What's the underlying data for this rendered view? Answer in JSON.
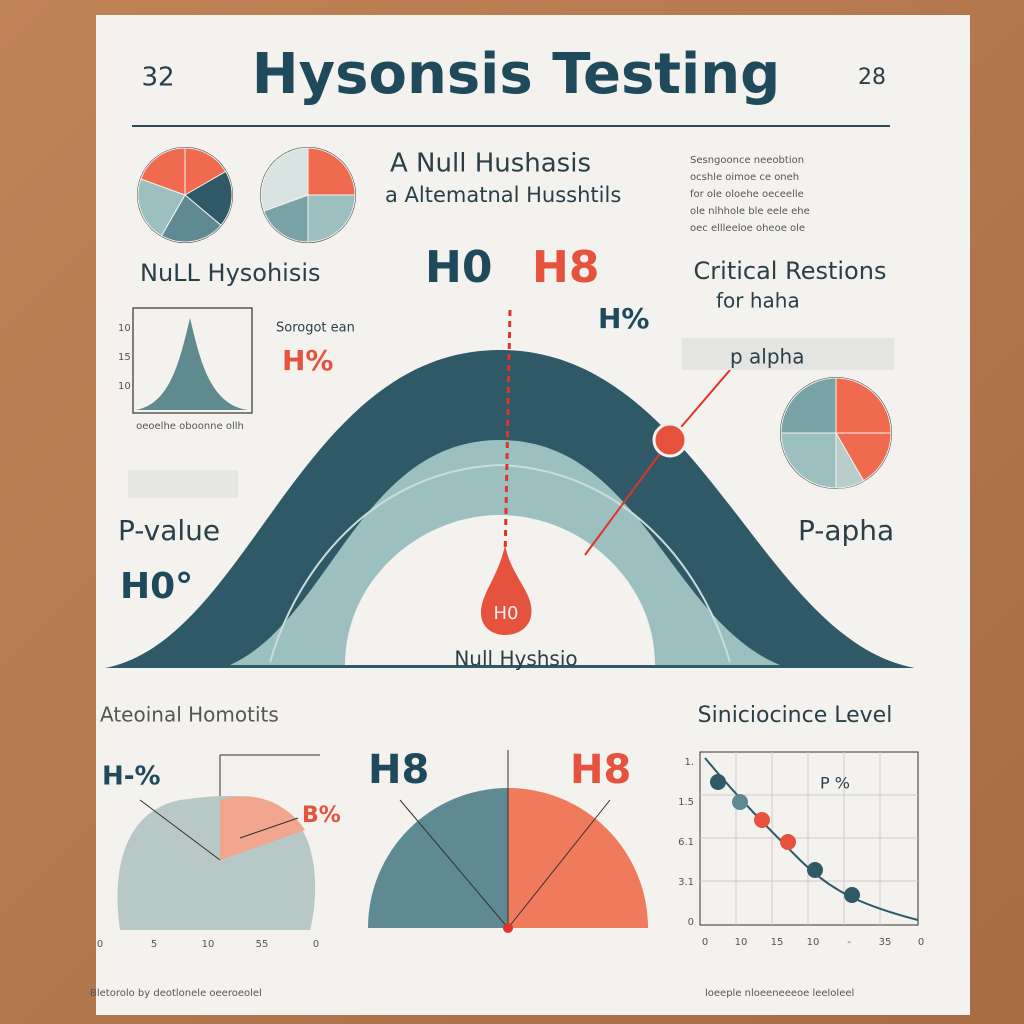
{
  "header": {
    "left_number": "32",
    "title": "Hysonsis Testing",
    "right_number": "28"
  },
  "intro": {
    "line1": "A Null Hushasis",
    "line2": "a Altematnal Husshtils",
    "note": [
      "Sesngoonce neeobtion",
      "ocshle oimoe ce oneh",
      "for ole oloehe oeceelle",
      "ole nlhhole ble eele ehe",
      "oec ellleeloe oheoe ole"
    ]
  },
  "middle": {
    "null_label": "NuLL Hysohisis",
    "h0": "H0",
    "h8": "H8",
    "h_percent_right": "H%",
    "critical_title": "Critical Restions",
    "critical_sub": "for   haha",
    "small_caption": "Sorogot ean",
    "h_percent_left": "H%",
    "p_alpha_top": "p alpha",
    "p_value": "P-value",
    "h0_degree": "H0°",
    "p_apha": "P-apha",
    "drop_label": "H0",
    "curve_caption": "Null Hyshsio",
    "mini_yticks": [
      "10",
      "15",
      "10"
    ],
    "mini_caption": "oeoelhe oboonne ollh"
  },
  "bottom": {
    "left_title": "Ateoinal Homotits",
    "left_h": "H-%",
    "left_b": "B%",
    "left_xticks": [
      "0",
      "5",
      "10",
      "55",
      "0"
    ],
    "mid_left": "H8",
    "mid_right": "H8",
    "right_title": "Siniciocince Level",
    "right_note": "P %",
    "right_yticks": [
      "1.",
      "1.5",
      "6.1",
      "3.1",
      "0"
    ],
    "right_xticks": [
      "0",
      "10",
      "15",
      "10",
      "-",
      "35",
      "0"
    ]
  },
  "footer": {
    "left": "Bletorolo by deotlonele oeeroeolel",
    "right": "loeeple nloeeneeeoe leeloleel"
  }
}
